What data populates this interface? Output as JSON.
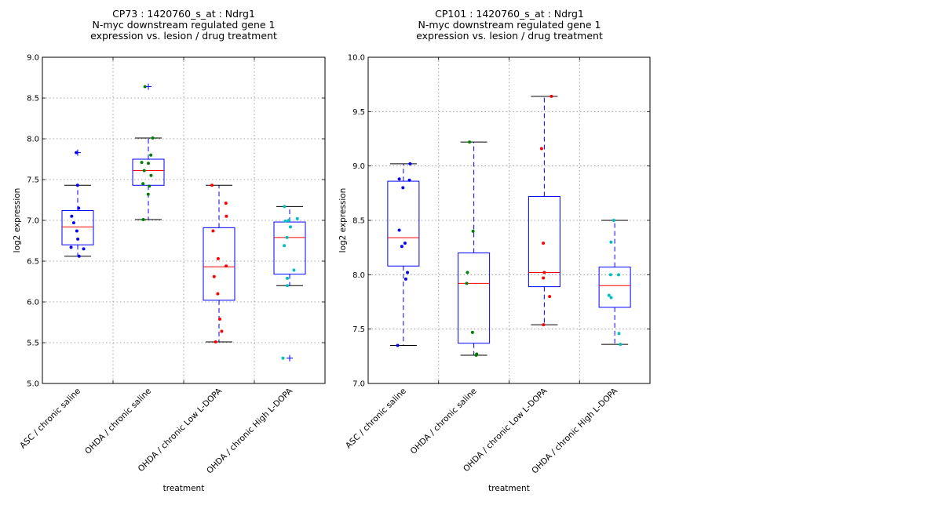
{
  "chart_data": [
    {
      "type": "box",
      "title_lines": [
        "CP73 : 1420760_s_at : Ndrg1",
        "N-myc downstream regulated gene 1",
        "expression vs. lesion / drug treatment"
      ],
      "xlabel": "treatment",
      "ylabel": "log2 expression",
      "ylim": [
        5.0,
        9.0
      ],
      "yticks": [
        "5.0",
        "5.5",
        "6.0",
        "6.5",
        "7.0",
        "7.5",
        "8.0",
        "8.5",
        "9.0"
      ],
      "grid": true,
      "categories": [
        "ASC / chronic saline",
        "OHDA / chronic saline",
        "OHDA / chronic Low L-DOPA",
        "OHDA / chronic High L-DOPA"
      ],
      "groups": [
        {
          "color": "#0000ff",
          "q1": 6.7,
          "median": 6.92,
          "q3": 7.12,
          "whisker_low": 6.56,
          "whisker_high": 7.43,
          "outliers": [
            7.83
          ],
          "points": [
            7.43,
            7.15,
            7.05,
            6.97,
            6.87,
            6.77,
            6.67,
            6.65,
            6.56,
            7.83
          ]
        },
        {
          "color": "#008000",
          "q1": 7.43,
          "median": 7.61,
          "q3": 7.75,
          "whisker_low": 7.01,
          "whisker_high": 8.01,
          "outliers": [
            8.64
          ],
          "points": [
            8.64,
            8.01,
            7.8,
            7.71,
            7.7,
            7.61,
            7.55,
            7.45,
            7.42,
            7.32,
            7.01
          ]
        },
        {
          "color": "#ff0000",
          "q1": 6.02,
          "median": 6.43,
          "q3": 6.91,
          "whisker_low": 5.51,
          "whisker_high": 7.43,
          "outliers": [],
          "points": [
            7.43,
            7.21,
            7.05,
            6.87,
            6.53,
            6.44,
            6.31,
            6.1,
            5.79,
            5.64,
            5.51
          ]
        },
        {
          "color": "#00bfbf",
          "q1": 6.34,
          "median": 6.79,
          "q3": 6.98,
          "whisker_low": 6.2,
          "whisker_high": 7.17,
          "outliers": [
            5.31
          ],
          "points": [
            7.17,
            7.02,
            7.0,
            6.99,
            6.92,
            6.79,
            6.69,
            6.39,
            6.29,
            6.2,
            5.31
          ]
        }
      ]
    },
    {
      "type": "box",
      "title_lines": [
        "CP101 : 1420760_s_at : Ndrg1",
        "N-myc downstream regulated gene 1",
        "expression vs. lesion / drug treatment"
      ],
      "xlabel": "treatment",
      "ylabel": "log2 expression",
      "ylim": [
        7.0,
        10.0
      ],
      "yticks": [
        "7.0",
        "7.5",
        "8.0",
        "8.5",
        "9.0",
        "9.5",
        "10.0"
      ],
      "grid": true,
      "categories": [
        "ASC / chronic saline",
        "OHDA / chronic saline",
        "OHDA / chronic Low L-DOPA",
        "OHDA / chronic High L-DOPA"
      ],
      "groups": [
        {
          "color": "#0000ff",
          "q1": 8.08,
          "median": 8.34,
          "q3": 8.86,
          "whisker_low": 7.35,
          "whisker_high": 9.02,
          "outliers": [],
          "points": [
            9.02,
            8.88,
            8.87,
            8.8,
            8.41,
            8.29,
            8.26,
            8.02,
            7.96,
            7.35
          ]
        },
        {
          "color": "#008000",
          "q1": 7.37,
          "median": 7.92,
          "q3": 8.2,
          "whisker_low": 7.26,
          "whisker_high": 9.22,
          "outliers": [],
          "points": [
            9.22,
            8.4,
            8.02,
            7.92,
            7.47,
            7.27,
            7.26
          ]
        },
        {
          "color": "#ff0000",
          "q1": 7.89,
          "median": 8.02,
          "q3": 8.72,
          "whisker_low": 7.54,
          "whisker_high": 9.64,
          "outliers": [],
          "points": [
            9.64,
            9.16,
            8.29,
            8.02,
            7.97,
            7.8,
            7.54
          ]
        },
        {
          "color": "#00bfbf",
          "q1": 7.7,
          "median": 7.9,
          "q3": 8.07,
          "whisker_low": 7.36,
          "whisker_high": 8.5,
          "outliers": [],
          "points": [
            8.5,
            8.3,
            8.0,
            8.0,
            7.81,
            7.79,
            7.46,
            7.36
          ]
        }
      ]
    }
  ]
}
